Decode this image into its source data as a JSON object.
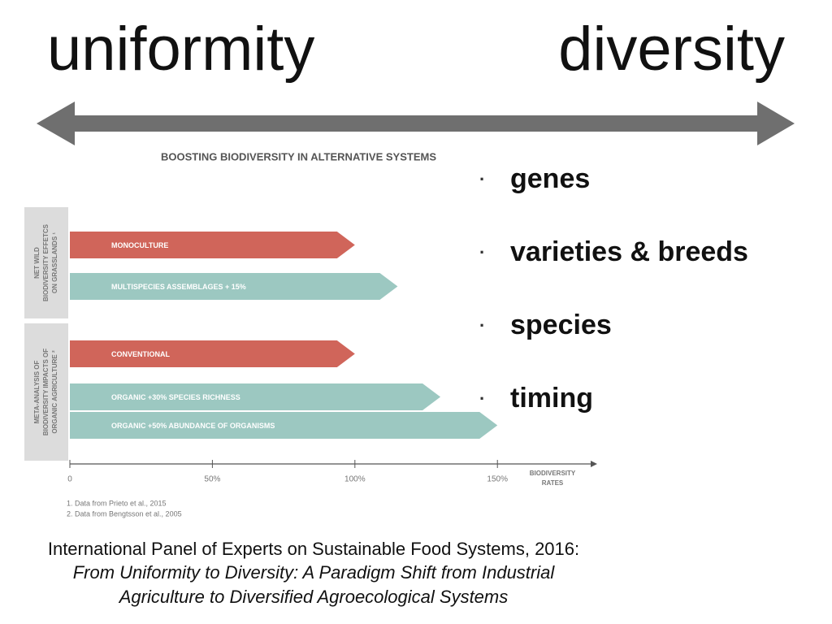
{
  "slide": {
    "left_heading": "uniformity",
    "right_heading": "diversity",
    "bullets": [
      "genes",
      "varieties & breeds",
      "species",
      "timing"
    ],
    "citation": {
      "source": "International Panel of Experts on Sustainable Food Systems, 2016:",
      "title_lines": [
        "From Uniformity to Diversity: A Paradigm Shift from Industrial",
        "Agriculture to Diversified Agroecological Systems"
      ]
    }
  },
  "chart_data": {
    "type": "bar",
    "title": "BOOSTING BIODIVERSITY IN ALTERNATIVE SYSTEMS",
    "groups": [
      {
        "label_lines": [
          "NET WILD",
          "BIODIVERSITY EFFETCS",
          "ON GRASSLANDS ¹"
        ],
        "categories": [
          "MONOCULTURE",
          "MULTISPECIES ASSEMBLAGES  + 15%"
        ],
        "values": [
          100,
          115
        ],
        "colors": [
          "#d0655a",
          "#9cc8c1"
        ]
      },
      {
        "label_lines": [
          "META-ANALYSIS OF",
          "BIODIVERSITY IMPACTS OF",
          "ORGANIC AGRICULTURE ²"
        ],
        "categories": [
          "CONVENTIONAL",
          "ORGANIC +30%  SPECIES RICHNESS",
          "ORGANIC +50%  ABUNDANCE OF ORGANISMS"
        ],
        "values": [
          100,
          130,
          150
        ],
        "colors": [
          "#d0655a",
          "#9cc8c1",
          "#9cc8c1"
        ]
      }
    ],
    "xlim": [
      0,
      185
    ],
    "xticks": [
      0,
      {
        "value": 50,
        "label": "50%"
      },
      {
        "value": 100,
        "label": "100%"
      },
      {
        "value": 150,
        "label": "150%"
      }
    ],
    "xlabel_lines": [
      "BIODIVERSITY",
      "RATES"
    ],
    "footnotes": [
      "1. Data from Prieto et al., 2015",
      "2. Data from Bengtsson et al., 2005"
    ]
  }
}
